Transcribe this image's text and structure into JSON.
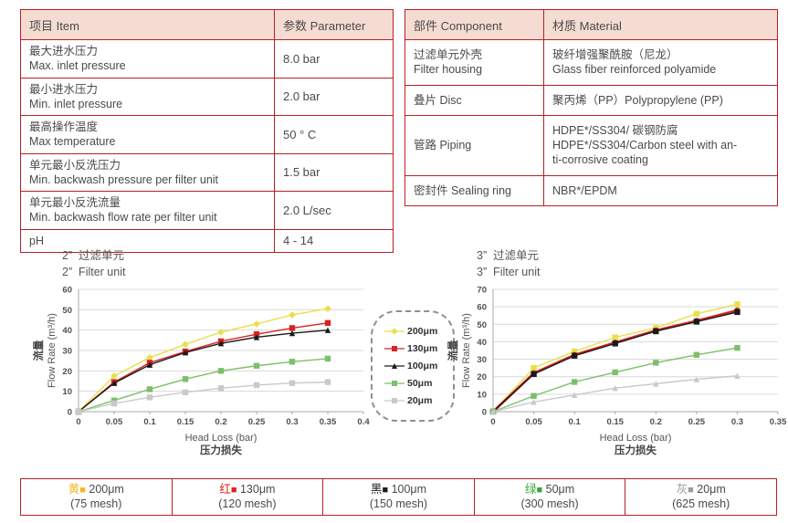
{
  "theme": {
    "border_red": "#b72025",
    "header_bg": "#f5dcd2",
    "text": "#4a4a4a",
    "grid": "#d9d9d9"
  },
  "spec_table": {
    "headers": [
      "项目 Item",
      "参数 Parameter"
    ],
    "rows": [
      {
        "item": [
          "最大进水压力",
          "Max. inlet pressure"
        ],
        "value": "8.0 bar"
      },
      {
        "item": [
          "最小进水压力",
          "Min. inlet pressure"
        ],
        "value": "2.0 bar"
      },
      {
        "item": [
          "最高操作温度",
          "Max temperature"
        ],
        "value": "50 ° C"
      },
      {
        "item": [
          "单元最小反洗压力",
          "Min. backwash pressure per filter unit"
        ],
        "value": "1.5 bar"
      },
      {
        "item": [
          "单元最小反洗流量",
          "Min. backwash flow rate per filter unit"
        ],
        "value": "2.0 L/sec"
      },
      {
        "item": [
          "pH"
        ],
        "value": "4 - 14"
      }
    ]
  },
  "material_table": {
    "headers": [
      "部件 Component",
      "材质 Material"
    ],
    "rows": [
      {
        "component": [
          "过滤单元外壳",
          "Filter housing"
        ],
        "material": [
          "玻纤增强聚酰胺（尼龙）",
          "Glass fiber reinforced polyamide"
        ]
      },
      {
        "component": [
          "叠片 Disc"
        ],
        "material": [
          "聚丙烯（PP）Polypropylene (PP)"
        ]
      },
      {
        "component": [
          "管路 Piping"
        ],
        "material": [
          "HDPE*/SS304/ 碳钢防腐",
          "HDPE*/SS304/Carbon steel with an-",
          "ti-corrosive coating"
        ]
      },
      {
        "component": [
          "密封件 Sealing ring"
        ],
        "material": [
          "NBR*/EPDM"
        ]
      }
    ]
  },
  "chart_data": [
    {
      "type": "line",
      "title_cn": "2”  过滤单元",
      "title_en": "2”  Filter unit",
      "xlabel": "Head Loss (bar)",
      "xlabel_cn": "压力损失",
      "ylabel_cn": "流量",
      "ylabel": "Flow Rate (m³/h)",
      "xlim": [
        0,
        0.4
      ],
      "ylim": [
        0,
        60
      ],
      "xtick_step": 0.05,
      "ytick_step": 10,
      "grid": "horizontal",
      "x": [
        0,
        0.05,
        0.1,
        0.15,
        0.2,
        0.25,
        0.3,
        0.35
      ],
      "series": [
        {
          "name": "200μm",
          "color": "#e8e04a",
          "marker": "diamond",
          "values": [
            0,
            17.5,
            26.5,
            33,
            39,
            43,
            47.5,
            50.5
          ]
        },
        {
          "name": "130μm",
          "color": "#d62422",
          "marker": "square",
          "values": [
            0,
            14.5,
            24,
            29.5,
            34.5,
            38,
            41,
            43.5
          ]
        },
        {
          "name": "100μm",
          "color": "#1a1a1a",
          "marker": "triangle",
          "values": [
            0,
            14,
            23,
            29,
            33.5,
            36.5,
            38.5,
            40
          ]
        },
        {
          "name": "50μm",
          "color": "#7cbf6b",
          "marker": "square",
          "values": [
            0,
            5.5,
            11,
            16,
            20,
            22.5,
            24.5,
            26
          ]
        },
        {
          "name": "20μm",
          "color": "#c9c9c9",
          "marker": "square",
          "values": [
            0,
            4,
            7,
            9.5,
            11.5,
            13,
            14,
            14.5
          ]
        }
      ]
    },
    {
      "type": "line",
      "title_cn": "3”  过滤单元",
      "title_en": "3”  Filter unit",
      "xlabel": "Head Loss (bar)",
      "xlabel_cn": "压力损失",
      "ylabel_cn": "流量",
      "ylabel": "Flow Rate (m³/h)",
      "xlim": [
        0,
        0.35
      ],
      "ylim": [
        0,
        70
      ],
      "xtick_step": 0.05,
      "ytick_step": 10,
      "grid": "horizontal",
      "x": [
        0,
        0.05,
        0.1,
        0.15,
        0.2,
        0.25,
        0.3
      ],
      "series": [
        {
          "name": "200μm",
          "color": "#e8e04a",
          "marker": "square",
          "values": [
            0,
            25,
            34.5,
            42.5,
            48,
            56,
            61.5
          ]
        },
        {
          "name": "130μm",
          "color": "#d62422",
          "marker": "circle",
          "thick": true,
          "values": [
            0,
            22,
            32.5,
            39.5,
            46.5,
            52,
            58
          ]
        },
        {
          "name": "100μm",
          "color": "#1a1a1a",
          "marker": "square",
          "values": [
            0,
            21.5,
            32,
            39,
            46,
            51.5,
            57
          ]
        },
        {
          "name": "50μm",
          "color": "#7cbf6b",
          "marker": "square",
          "values": [
            0,
            9,
            17,
            22.5,
            28,
            32.5,
            36.5
          ]
        },
        {
          "name": "20μm",
          "color": "#c9c9c9",
          "marker": "triangle",
          "values": [
            0,
            5.5,
            9.5,
            13.5,
            16,
            18.5,
            20.5
          ]
        }
      ]
    }
  ],
  "legend_box": {
    "items": [
      {
        "label": "200μm",
        "color": "#e8e04a",
        "marker": "diamond"
      },
      {
        "label": "130μm",
        "color": "#d62422",
        "marker": "square"
      },
      {
        "label": "100μm",
        "color": "#1a1a1a",
        "marker": "triangle"
      },
      {
        "label": "50μm",
        "color": "#7cbf6b",
        "marker": "square"
      },
      {
        "label": "20μm",
        "color": "#c9c9c9",
        "marker": "square"
      }
    ]
  },
  "mesh_legend": {
    "cells": [
      {
        "color_cn": "黄",
        "color": "#f0b823",
        "size": "200μm",
        "mesh": "(75 mesh)"
      },
      {
        "color_cn": "红",
        "color": "#e02020",
        "size": "130μm",
        "mesh": "(120 mesh)"
      },
      {
        "color_cn": "黑",
        "color": "#1a1a1a",
        "size": "100μm",
        "mesh": "(150 mesh)"
      },
      {
        "color_cn": "绿",
        "color": "#3aa63a",
        "size": "50μm",
        "mesh": "(300 mesh)"
      },
      {
        "color_cn": "灰",
        "color": "#9c9c9c",
        "size": "20μm",
        "mesh": "(625 mesh)"
      }
    ]
  }
}
